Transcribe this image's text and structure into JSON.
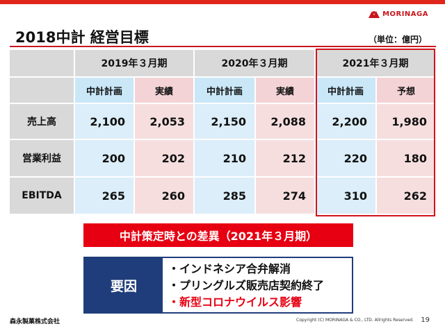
{
  "header": {
    "brand": "MORINAGA",
    "title": "2018中計 経営目標",
    "unit": "（単位：億円）"
  },
  "table": {
    "years": [
      "2019年３月期",
      "2020年３月期",
      "2021年３月期"
    ],
    "subheaders": [
      "中計計画",
      "実績",
      "中計計画",
      "実績",
      "中計計画",
      "予想"
    ],
    "rows": [
      {
        "label": "売上高",
        "values": [
          "2,100",
          "2,053",
          "2,150",
          "2,088",
          "2,200",
          "1,980"
        ]
      },
      {
        "label": "営業利益",
        "values": [
          "200",
          "202",
          "210",
          "212",
          "220",
          "180"
        ]
      },
      {
        "label": "EBITDA",
        "values": [
          "265",
          "260",
          "285",
          "274",
          "310",
          "262"
        ]
      }
    ]
  },
  "banner": "中計策定時との差異（2021年３月期）",
  "factors": {
    "label": "要因",
    "items": [
      "・インドネシア合弁解消",
      "・プリングルズ販売店契約終了",
      "・新型コロナウイルス影響"
    ]
  },
  "footer": {
    "company": "森永製菓株式会社",
    "copyright": "Copyright (C) MORINAGA & CO., LTD. Allrights Reserved.",
    "page": "19"
  },
  "colors": {
    "accent": "#e0251b",
    "navy": "#1f3d7a"
  }
}
